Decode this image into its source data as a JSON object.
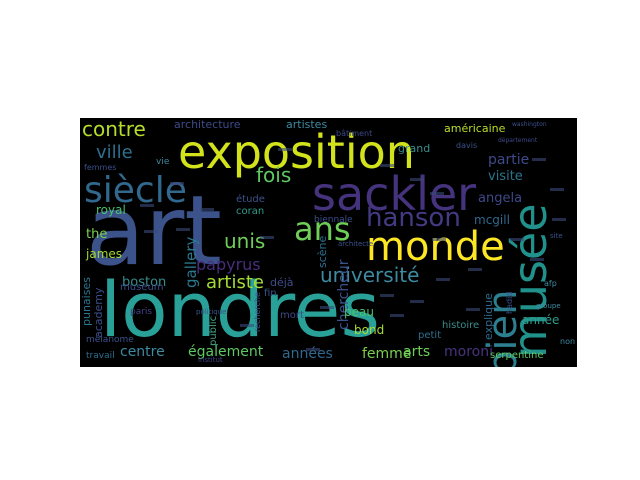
{
  "wordcloud": {
    "background": "#000000",
    "words": [
      {
        "text": "londres",
        "color": "#2aa198"
      },
      {
        "text": "art",
        "color": "#3b528b"
      },
      {
        "text": "exposition",
        "color": "#d2e21b"
      },
      {
        "text": "sackler",
        "color": "#46337e"
      },
      {
        "text": "musée",
        "color": "#21918c"
      },
      {
        "text": "monde",
        "color": "#fde725"
      },
      {
        "text": "siècle",
        "color": "#31688e"
      },
      {
        "text": "hanson",
        "color": "#443a83"
      },
      {
        "text": "ans",
        "color": "#6ece58"
      },
      {
        "text": "bien",
        "color": "#2c7f8e"
      },
      {
        "text": "contre",
        "color": "#b5de2b"
      },
      {
        "text": "université",
        "color": "#3e8aa0"
      },
      {
        "text": "ville",
        "color": "#2d708e"
      },
      {
        "text": "artiste",
        "color": "#a5db36"
      },
      {
        "text": "unis",
        "color": "#6ece58"
      },
      {
        "text": "fois",
        "color": "#5ec962"
      },
      {
        "text": "papyrus",
        "color": "#472d7b"
      },
      {
        "text": "gallery",
        "color": "#2a788e"
      },
      {
        "text": "chercheur",
        "color": "#3b528b"
      },
      {
        "text": "également",
        "color": "#5ec962"
      },
      {
        "text": "centre",
        "color": "#3e8aa0"
      },
      {
        "text": "années",
        "color": "#31688e"
      },
      {
        "text": "femme",
        "color": "#7ad151"
      },
      {
        "text": "arts",
        "color": "#6ece58"
      },
      {
        "text": "moroni",
        "color": "#48337e"
      },
      {
        "text": "partie",
        "color": "#3e4989"
      },
      {
        "text": "visite",
        "color": "#2b748e"
      },
      {
        "text": "angela",
        "color": "#3e4989"
      },
      {
        "text": "américaine",
        "color": "#b8de29"
      },
      {
        "text": "architecture",
        "color": "#3e4a89"
      },
      {
        "text": "artistes",
        "color": "#3e8aa0"
      },
      {
        "text": "royal",
        "color": "#4ac16d"
      },
      {
        "text": "the",
        "color": "#7ad151"
      },
      {
        "text": "james",
        "color": "#a2da37"
      },
      {
        "text": "boston",
        "color": "#3b8c8c"
      },
      {
        "text": "mcgill",
        "color": "#31688e"
      },
      {
        "text": "année",
        "color": "#2f9c8a"
      },
      {
        "text": "bond",
        "color": "#a8db34"
      },
      {
        "text": "peau",
        "color": "#4ac16d"
      },
      {
        "text": "explique",
        "color": "#2f6b8e"
      },
      {
        "text": "punaises",
        "color": "#2b758e"
      },
      {
        "text": "academy",
        "color": "#3c508b"
      },
      {
        "text": "museum",
        "color": "#3d4d8a"
      },
      {
        "text": "déjà",
        "color": "#3d4d8a"
      },
      {
        "text": "scène",
        "color": "#2e6f8e"
      },
      {
        "text": "grand",
        "color": "#3b8c8c"
      },
      {
        "text": "étude",
        "color": "#3b528b"
      },
      {
        "text": "coran",
        "color": "#2f9c8a"
      },
      {
        "text": "fin",
        "color": "#3b528b"
      },
      {
        "text": "mort",
        "color": "#3e4989"
      },
      {
        "text": "public",
        "color": "#46a480"
      },
      {
        "text": "histoire",
        "color": "#3b8c8c"
      },
      {
        "text": "petit",
        "color": "#2d708e"
      },
      {
        "text": "biennale",
        "color": "#3c508b"
      },
      {
        "text": "serpentine",
        "color": "#5ec962"
      },
      {
        "text": "travail",
        "color": "#2e6f8e"
      },
      {
        "text": "mélanome",
        "color": "#3c508b"
      },
      {
        "text": "paris",
        "color": "#424086"
      },
      {
        "text": "recherche",
        "color": "#3b528b"
      },
      {
        "text": "institut",
        "color": "#414487"
      },
      {
        "text": "politique",
        "color": "#3b528b"
      },
      {
        "text": "vie",
        "color": "#3e8aa0"
      },
      {
        "text": "femmes",
        "color": "#3c508b"
      },
      {
        "text": "hadid",
        "color": "#3b528b"
      },
      {
        "text": "afp",
        "color": "#3e8aa0"
      },
      {
        "text": "washington",
        "color": "#3b528b"
      },
      {
        "text": "bâtiment",
        "color": "#3e4989"
      },
      {
        "text": "davis",
        "color": "#3b528b"
      },
      {
        "text": "département",
        "color": "#3e4989"
      },
      {
        "text": "groupe",
        "color": "#3e8aa0"
      },
      {
        "text": "architecte",
        "color": "#3b528b"
      },
      {
        "text": "non",
        "color": "#3e8aa0"
      },
      {
        "text": "site",
        "color": "#3b528b"
      }
    ]
  }
}
